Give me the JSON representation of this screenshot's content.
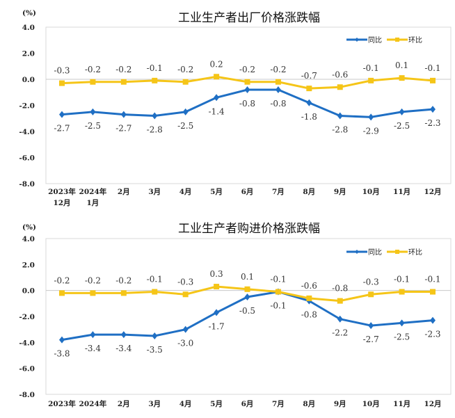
{
  "chart_data": [
    {
      "type": "line",
      "title": "工业生产者出厂价格涨跌幅",
      "ylabel": "(%)",
      "ylim": [
        -8.0,
        4.0
      ],
      "yticks": [
        "4.0",
        "2.0",
        "0.0",
        "-2.0",
        "-4.0",
        "-6.0",
        "-8.0"
      ],
      "ytick_values": [
        4,
        2,
        0,
        -2,
        -4,
        -6,
        -8
      ],
      "categories": [
        [
          "2023年",
          "12月"
        ],
        [
          "2024年",
          "1月"
        ],
        [
          "2月"
        ],
        [
          "3月"
        ],
        [
          "4月"
        ],
        [
          "5月"
        ],
        [
          "6月"
        ],
        [
          "7月"
        ],
        [
          "8月"
        ],
        [
          "9月"
        ],
        [
          "10月"
        ],
        [
          "11月"
        ],
        [
          "12月"
        ]
      ],
      "legend_position": "top-right",
      "series": [
        {
          "name": "同比",
          "color": "#1f6fc4",
          "marker": "diamond",
          "values": [
            -2.7,
            -2.5,
            -2.7,
            -2.8,
            -2.5,
            -1.4,
            -0.8,
            -0.8,
            -1.8,
            -2.8,
            -2.9,
            -2.5,
            -2.3
          ]
        },
        {
          "name": "环比",
          "color": "#f5c518",
          "marker": "square",
          "values": [
            -0.3,
            -0.2,
            -0.2,
            -0.1,
            -0.2,
            0.2,
            -0.2,
            -0.2,
            -0.7,
            -0.6,
            -0.1,
            0.1,
            -0.1
          ]
        }
      ]
    },
    {
      "type": "line",
      "title": "工业生产者购进价格涨跌幅",
      "ylabel": "(%)",
      "ylim": [
        -8.0,
        4.0
      ],
      "yticks": [
        "4.0",
        "2.0",
        "0.0",
        "-2.0",
        "-4.0",
        "-6.0",
        "-8.0"
      ],
      "ytick_values": [
        4,
        2,
        0,
        -2,
        -4,
        -6,
        -8
      ],
      "categories": [
        [
          "2023年"
        ],
        [
          "2024年"
        ],
        [
          "2月"
        ],
        [
          "3月"
        ],
        [
          "4月"
        ],
        [
          "5月"
        ],
        [
          "6月"
        ],
        [
          "7月"
        ],
        [
          "8月"
        ],
        [
          "9月"
        ],
        [
          "10月"
        ],
        [
          "11月"
        ],
        [
          "12月"
        ]
      ],
      "legend_position": "top-right",
      "series": [
        {
          "name": "同比",
          "color": "#1f6fc4",
          "marker": "diamond",
          "values": [
            -3.8,
            -3.4,
            -3.4,
            -3.5,
            -3.0,
            -1.7,
            -0.5,
            -0.1,
            -0.8,
            -2.2,
            -2.7,
            -2.5,
            -2.3
          ]
        },
        {
          "name": "环比",
          "color": "#f5c518",
          "marker": "square",
          "values": [
            -0.2,
            -0.2,
            -0.2,
            -0.1,
            -0.3,
            0.3,
            0.1,
            -0.1,
            -0.6,
            -0.8,
            -0.3,
            -0.1,
            -0.1
          ]
        }
      ]
    }
  ]
}
